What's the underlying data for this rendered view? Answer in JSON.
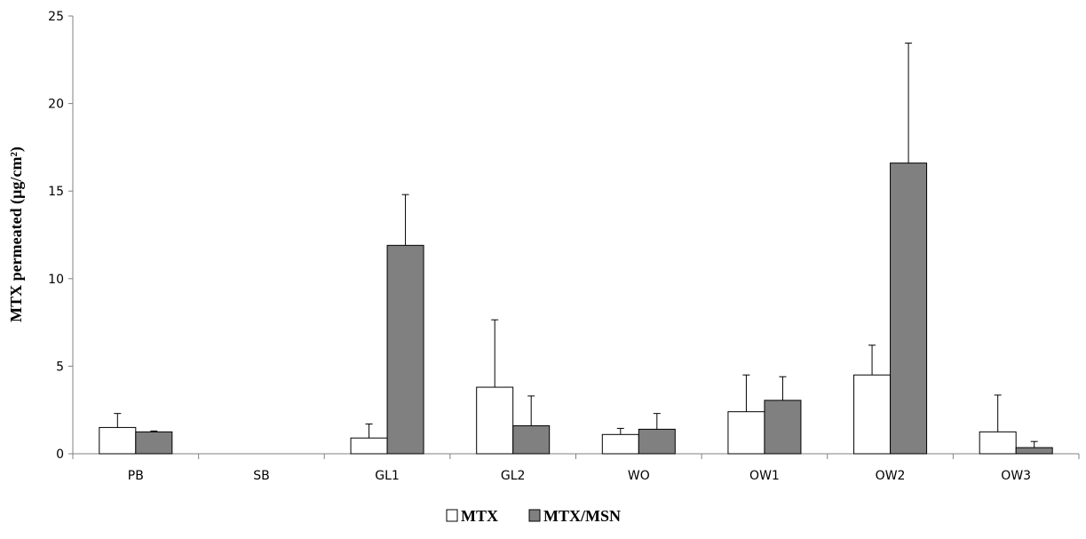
{
  "chart_data": {
    "type": "bar",
    "title": "",
    "xlabel": "",
    "ylabel": "MTX permeated (µg/cm²)",
    "ylim": [
      0,
      25
    ],
    "yticks": [
      0,
      5,
      10,
      15,
      20,
      25
    ],
    "grid": false,
    "legend_position": "bottom-center",
    "categories": [
      "PB",
      "SB",
      "GL1",
      "GL2",
      "WO",
      "OW1",
      "OW2",
      "OW3"
    ],
    "series": [
      {
        "name": "MTX",
        "color": "#ffffff",
        "values": [
          1.5,
          0,
          0.9,
          3.8,
          1.1,
          2.4,
          4.5,
          1.25
        ],
        "errors": [
          0.8,
          0,
          0.8,
          3.85,
          0.35,
          2.1,
          1.7,
          2.1
        ]
      },
      {
        "name": "MTX/MSN",
        "color": "#808080",
        "values": [
          1.25,
          0,
          11.9,
          1.6,
          1.4,
          3.05,
          16.6,
          0.35
        ],
        "errors": [
          0.05,
          0,
          2.9,
          1.7,
          0.9,
          1.35,
          6.85,
          0.35
        ]
      }
    ]
  }
}
